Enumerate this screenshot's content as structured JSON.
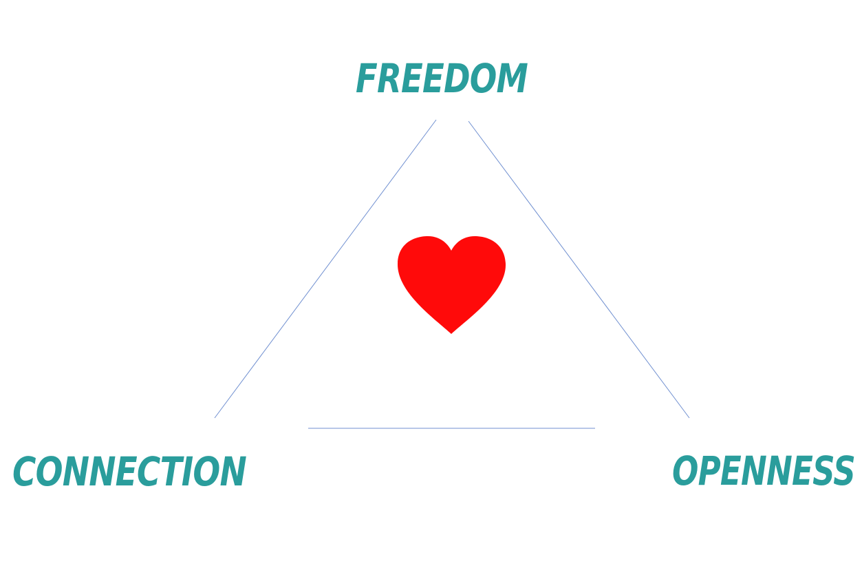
{
  "nodes": {
    "top": {
      "label": "FREEDOM"
    },
    "bottom_left": {
      "label": "CONNECTION"
    },
    "bottom_right": {
      "label": "OPENNESS"
    }
  },
  "center": {
    "icon": "heart-icon"
  },
  "colors": {
    "label": "#2a9d9c",
    "edge": "#6f8fd0",
    "heart": "#ff0a0a",
    "background": "#ffffff"
  }
}
